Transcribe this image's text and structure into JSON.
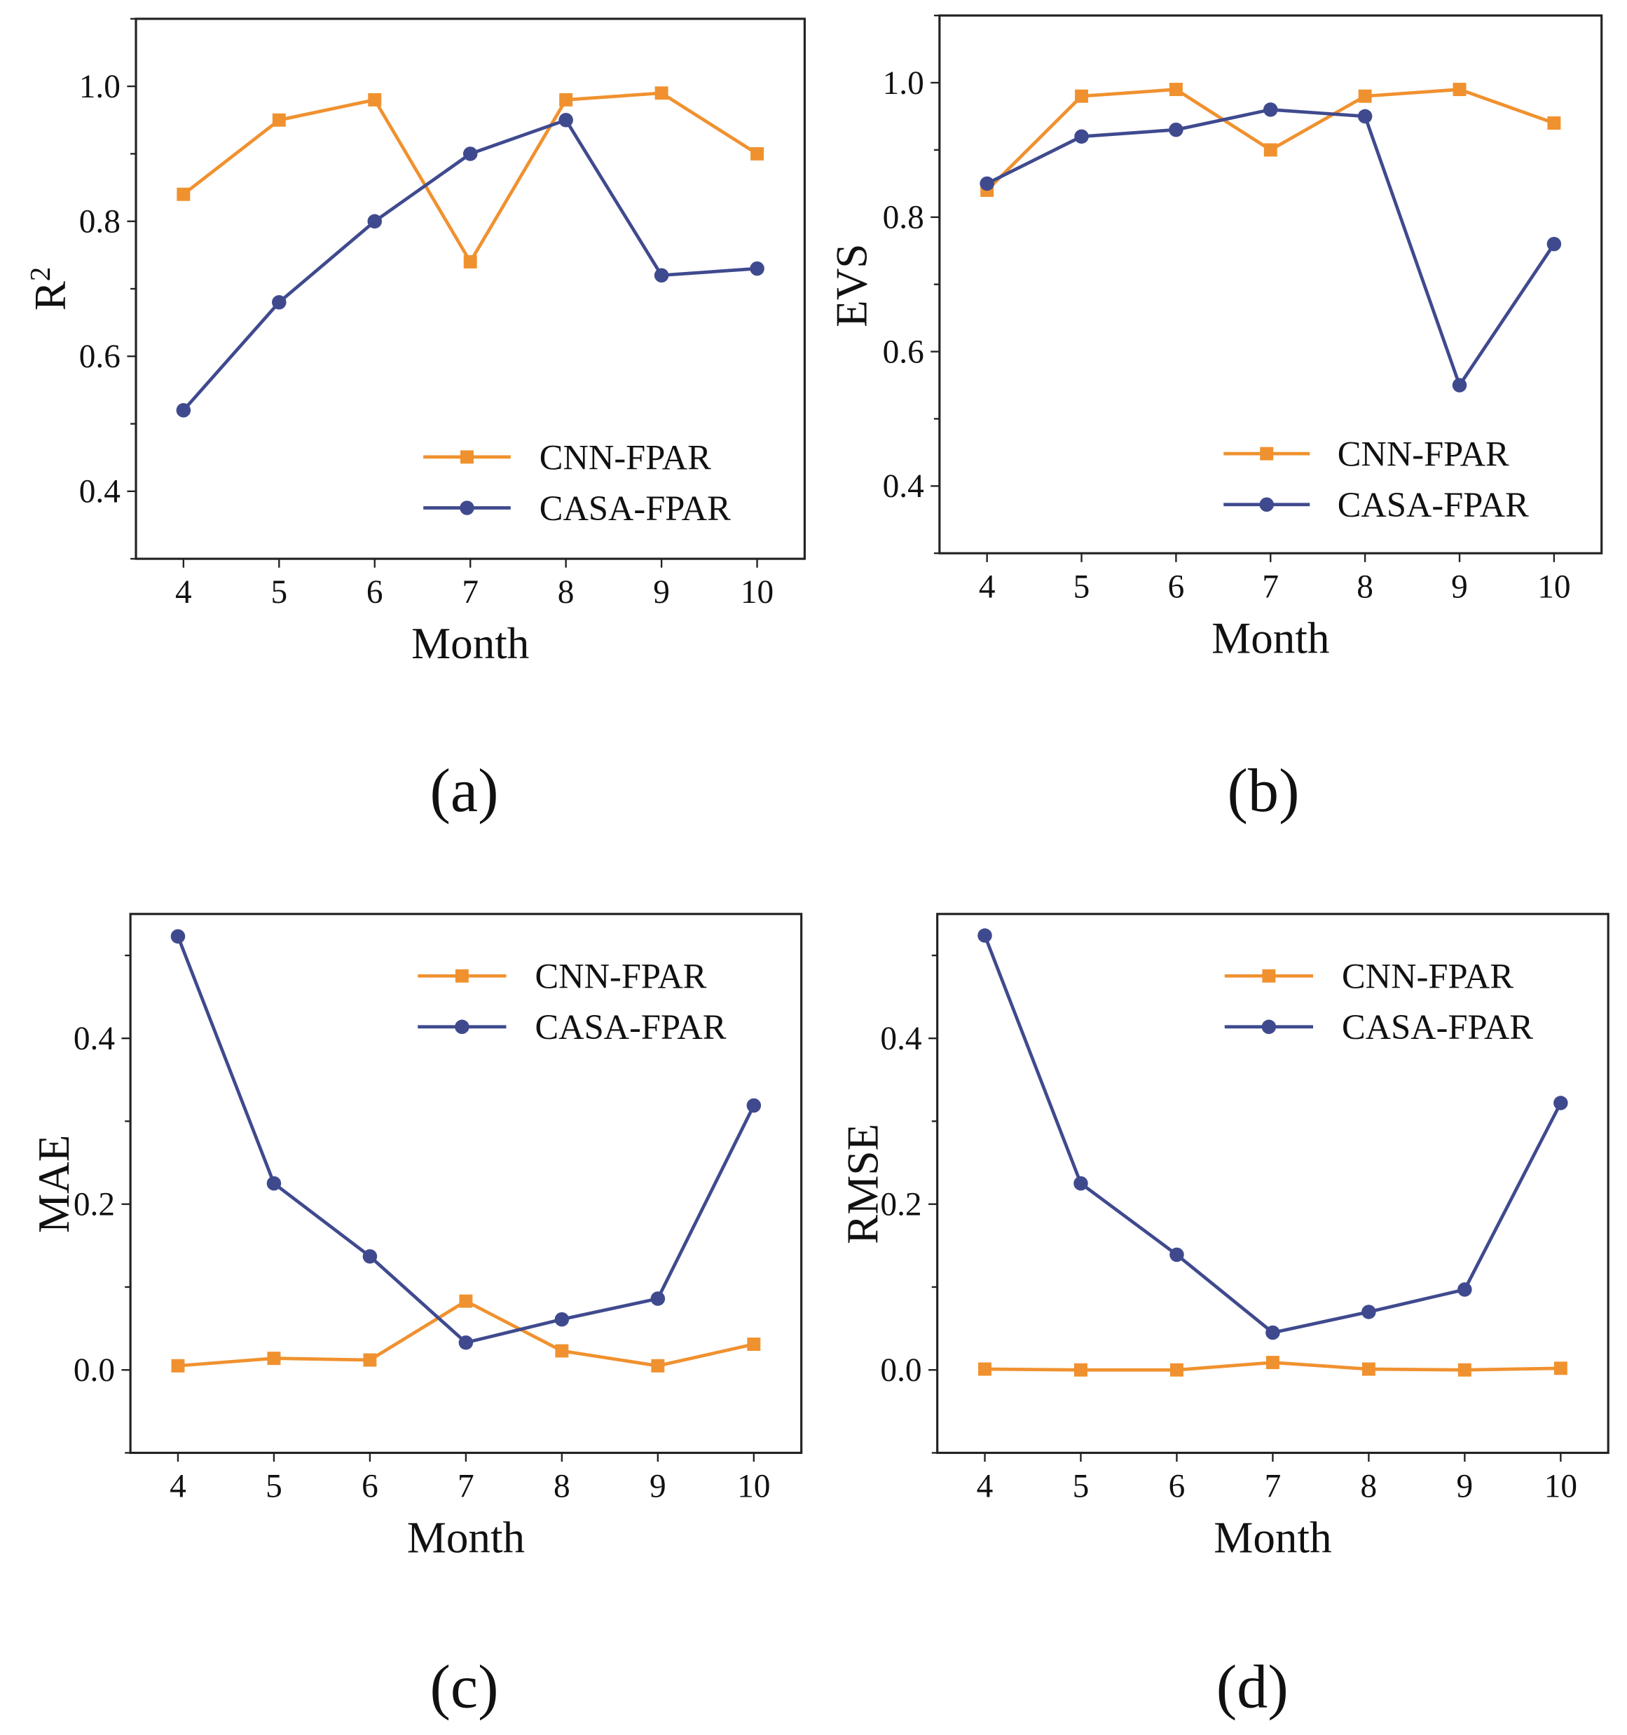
{
  "colors": {
    "cnn": "#F0912F",
    "casa": "#3F4A8E",
    "axis": "#222222"
  },
  "chart_data": [
    {
      "id": "a",
      "type": "line",
      "panel_label": "(a)",
      "xlabel": "Month",
      "ylabel": "R",
      "ylabel_sup": "2",
      "x": [
        4,
        5,
        6,
        7,
        8,
        9,
        10
      ],
      "ylim": [
        0.3,
        1.1
      ],
      "yticks": [
        0.4,
        0.6,
        0.8,
        1.0
      ],
      "ytick_labels": [
        "0.4",
        "0.6",
        "0.8",
        "1.0"
      ],
      "xtick_labels": [
        "4",
        "5",
        "6",
        "7",
        "8",
        "9",
        "10"
      ],
      "legend": "bottom-right",
      "series": [
        {
          "name": "CNN-FPAR",
          "marker": "square",
          "values": [
            0.84,
            0.95,
            0.98,
            0.74,
            0.98,
            0.99,
            0.9
          ]
        },
        {
          "name": "CASA-FPAR",
          "marker": "circle",
          "values": [
            0.52,
            0.68,
            0.8,
            0.9,
            0.95,
            0.72,
            0.73
          ]
        }
      ]
    },
    {
      "id": "b",
      "type": "line",
      "panel_label": "(b)",
      "xlabel": "Month",
      "ylabel": "EVS",
      "ylabel_sup": "",
      "x": [
        4,
        5,
        6,
        7,
        8,
        9,
        10
      ],
      "ylim": [
        0.3,
        1.1
      ],
      "yticks": [
        0.4,
        0.6,
        0.8,
        1.0
      ],
      "ytick_labels": [
        "0.4",
        "0.6",
        "0.8",
        "1.0"
      ],
      "xtick_labels": [
        "4",
        "5",
        "6",
        "7",
        "8",
        "9",
        "10"
      ],
      "legend": "bottom-right",
      "series": [
        {
          "name": "CNN-FPAR",
          "marker": "square",
          "values": [
            0.84,
            0.98,
            0.99,
            0.9,
            0.98,
            0.99,
            0.94
          ]
        },
        {
          "name": "CASA-FPAR",
          "marker": "circle",
          "values": [
            0.85,
            0.92,
            0.93,
            0.96,
            0.95,
            0.55,
            0.76
          ]
        }
      ]
    },
    {
      "id": "c",
      "type": "line",
      "panel_label": "(c)",
      "xlabel": "Month",
      "ylabel": "MAE",
      "ylabel_sup": "",
      "x": [
        4,
        5,
        6,
        7,
        8,
        9,
        10
      ],
      "ylim": [
        -0.1,
        0.55
      ],
      "yticks": [
        0.0,
        0.2,
        0.4
      ],
      "ytick_labels": [
        "0.0",
        "0.2",
        "0.4"
      ],
      "xtick_labels": [
        "4",
        "5",
        "6",
        "7",
        "8",
        "9",
        "10"
      ],
      "legend": "top-right",
      "series": [
        {
          "name": "CNN-FPAR",
          "marker": "square",
          "values": [
            0.005,
            0.014,
            0.012,
            0.083,
            0.023,
            0.005,
            0.031
          ]
        },
        {
          "name": "CASA-FPAR",
          "marker": "circle",
          "values": [
            0.523,
            0.225,
            0.137,
            0.033,
            0.061,
            0.086,
            0.319
          ]
        }
      ]
    },
    {
      "id": "d",
      "type": "line",
      "panel_label": "(d)",
      "xlabel": "Month",
      "ylabel": "RMSE",
      "ylabel_sup": "",
      "x": [
        4,
        5,
        6,
        7,
        8,
        9,
        10
      ],
      "ylim": [
        -0.1,
        0.55
      ],
      "yticks": [
        0.0,
        0.2,
        0.4
      ],
      "ytick_labels": [
        "0.0",
        "0.2",
        "0.4"
      ],
      "xtick_labels": [
        "4",
        "5",
        "6",
        "7",
        "8",
        "9",
        "10"
      ],
      "legend": "top-right",
      "series": [
        {
          "name": "CNN-FPAR",
          "marker": "square",
          "values": [
            0.001,
            0.0,
            0.0,
            0.009,
            0.001,
            0.0,
            0.002
          ]
        },
        {
          "name": "CASA-FPAR",
          "marker": "circle",
          "values": [
            0.524,
            0.225,
            0.139,
            0.045,
            0.07,
            0.097,
            0.322
          ]
        }
      ]
    }
  ]
}
